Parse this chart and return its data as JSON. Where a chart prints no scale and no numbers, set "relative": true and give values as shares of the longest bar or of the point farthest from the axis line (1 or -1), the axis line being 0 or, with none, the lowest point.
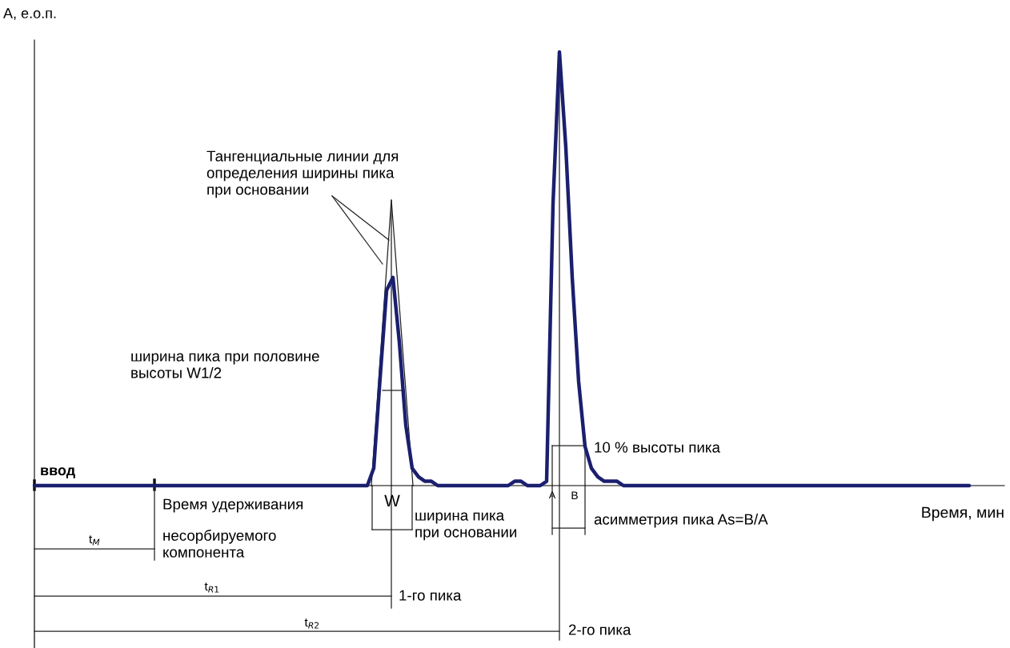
{
  "chart_data": {
    "type": "line",
    "relative": true,
    "xlabel": "Время, мин",
    "ylabel": "А, е.о.п.",
    "categories": [
      null,
      null,
      null,
      null,
      null,
      null,
      null,
      null,
      null,
      null,
      null,
      null,
      null,
      null,
      null,
      null,
      null,
      null,
      null,
      null,
      null,
      null,
      null,
      null,
      null,
      null,
      null,
      null,
      null,
      null,
      null,
      null,
      null,
      null,
      null,
      null,
      null,
      null,
      null,
      null,
      null,
      null,
      null,
      null,
      null,
      null,
      null,
      null,
      null,
      null,
      null,
      null,
      null,
      null,
      null,
      null,
      null,
      null,
      null,
      null,
      null,
      null,
      null,
      null,
      null,
      null,
      null,
      null,
      null,
      null,
      null,
      null,
      null,
      null,
      null,
      null,
      null,
      null,
      null,
      null,
      null,
      null,
      null,
      null,
      null,
      null,
      null,
      null,
      null,
      null,
      null,
      null,
      null,
      null,
      null,
      null,
      null,
      null,
      null,
      null,
      null,
      null,
      null,
      null,
      null,
      null,
      null,
      null,
      null,
      null,
      null,
      null,
      null,
      null,
      null,
      null,
      null,
      null,
      null,
      null,
      null,
      null,
      null,
      null,
      null,
      null,
      null,
      null,
      null,
      null,
      null,
      null,
      null,
      null,
      null,
      null,
      null,
      null,
      null,
      null,
      null,
      null,
      null,
      null,
      null,
      null,
      null,
      null,
      null,
      null,
      null,
      null
    ],
    "series": [
      {
        "color": "#1a1f6e",
        "values": [
          0,
          0,
          0,
          0,
          0,
          0,
          0,
          0,
          0,
          0,
          0,
          0,
          0,
          0,
          0,
          0,
          0,
          0,
          0,
          0,
          0,
          0,
          0,
          0,
          0,
          0,
          0,
          0,
          0,
          0,
          0,
          0,
          0,
          0,
          0,
          0,
          0,
          0,
          0,
          0,
          0,
          0,
          0,
          0,
          0,
          0,
          0,
          0,
          0,
          0,
          0,
          0,
          0,
          0.04,
          0.25,
          0.45,
          0.48,
          0.33,
          0.14,
          0.04,
          0.02,
          0.01,
          0.01,
          0,
          0,
          0,
          0,
          0,
          0,
          0,
          0,
          0,
          0,
          0,
          0,
          0.01,
          0.01,
          0,
          0,
          0,
          0.01,
          0.65,
          1.0,
          0.78,
          0.48,
          0.24,
          0.09,
          0.04,
          0.02,
          0.01,
          0.01,
          0.01,
          0,
          0,
          0,
          0,
          0,
          0,
          0,
          0,
          0,
          0,
          0,
          0,
          0,
          0,
          0,
          0,
          0,
          0,
          0,
          0,
          0,
          0,
          0,
          0,
          0,
          0,
          0,
          0,
          0,
          0,
          0,
          0,
          0,
          0,
          0,
          0,
          0,
          0,
          0,
          0,
          0,
          0,
          0,
          0,
          0,
          0,
          0,
          0,
          0,
          0,
          0,
          0,
          0,
          0,
          0,
          null,
          null,
          null,
          null,
          null
        ]
      }
    ],
    "annotations": [
      "Тангенциальные линии для\nопределения ширины пика\nпри основании",
      "ширина пика при половине\nвысоты W1/2",
      "10 % высоты пика",
      "ввод",
      "Время удерживания",
      "несорбируемого\nкомпонента",
      "W",
      "ширина пика\nпри основании",
      "A",
      "B",
      "асимметрия пика As=B/A",
      "t$_{M}$",
      "t$_{R1}$",
      "1-го пика",
      "t$_{R2}$",
      "2-го пика"
    ]
  }
}
